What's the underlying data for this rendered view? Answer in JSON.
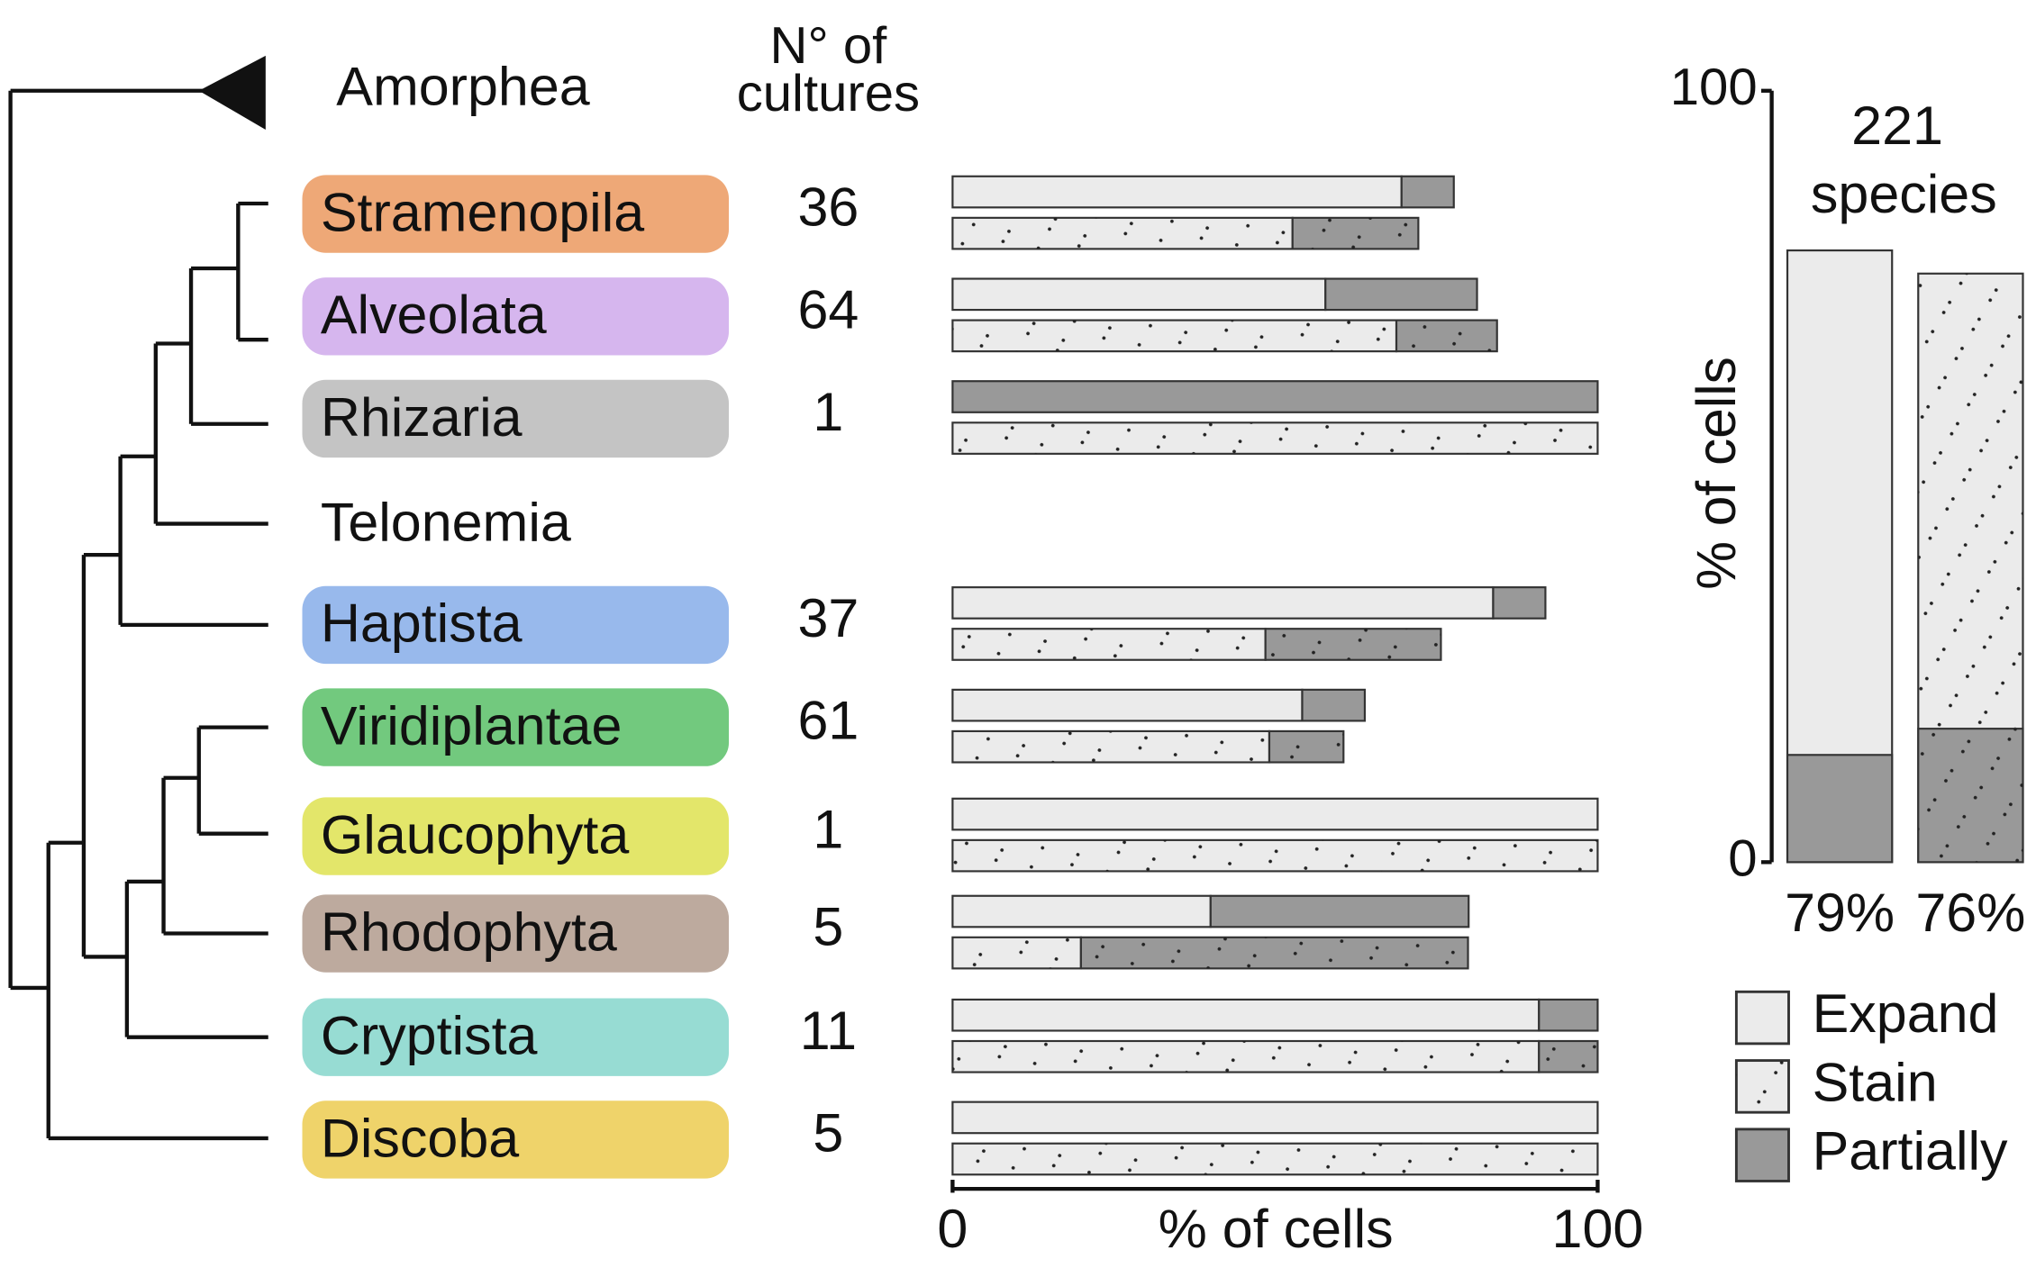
{
  "chart_data": [
    {
      "type": "bar",
      "orientation": "horizontal",
      "outgroup": "Amorphea",
      "count_header": [
        "N° of",
        "cultures"
      ],
      "categories": [
        "Stramenopila",
        "Alveolata",
        "Rhizaria",
        "Telonemia",
        "Haptista",
        "Viridiplantae",
        "Glaucophyta",
        "Rhodophyta",
        "Cryptista",
        "Discoba"
      ],
      "category_colors": [
        "#eea877",
        "#d6b6ee",
        "#c4c4c4",
        null,
        "#98b9ec",
        "#72c97e",
        "#e3e66a",
        "#bdaa9e",
        "#97dcd3",
        "#efd36a"
      ],
      "counts": [
        36,
        64,
        1,
        null,
        37,
        61,
        1,
        5,
        11,
        5
      ],
      "series": [
        {
          "name": "Expand",
          "values": [
            69.6,
            57.8,
            0,
            null,
            83.8,
            54.2,
            100,
            40,
            90.9,
            100
          ],
          "partial": [
            8.1,
            23.5,
            100,
            null,
            8.1,
            9.7,
            0,
            40,
            9.1,
            0
          ]
        },
        {
          "name": "Stain",
          "pattern": "dots",
          "values": [
            52.7,
            68.8,
            100,
            null,
            48.5,
            49.1,
            100,
            19.9,
            90.9,
            100
          ],
          "partial": [
            19.5,
            15.6,
            0,
            null,
            27.2,
            11.5,
            0,
            60,
            9.1,
            0
          ]
        }
      ],
      "partial_name": "Partially",
      "colors": {
        "full": "#ebebeb",
        "partial": "#999999"
      },
      "xlim": [
        0,
        100
      ],
      "xticks": [
        0,
        100
      ],
      "xlabel": "% of cells"
    },
    {
      "type": "bar",
      "orientation": "vertical",
      "annotation": [
        "221",
        "species"
      ],
      "series": [
        {
          "pattern": null,
          "values": [
            79.3
          ],
          "value_labels": [
            "79%"
          ],
          "partial": [
            13.9
          ]
        },
        {
          "pattern": "dots",
          "values": [
            76.3
          ],
          "value_labels": [
            "76%"
          ],
          "partial": [
            17.3
          ]
        }
      ],
      "ylim": [
        0,
        100
      ],
      "yticks": [
        0,
        100
      ],
      "ylabel": "% of cells"
    }
  ]
}
